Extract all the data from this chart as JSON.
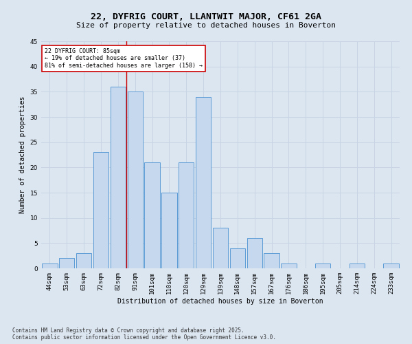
{
  "title": "22, DYFRIG COURT, LLANTWIT MAJOR, CF61 2GA",
  "subtitle": "Size of property relative to detached houses in Boverton",
  "xlabel": "Distribution of detached houses by size in Boverton",
  "ylabel": "Number of detached properties",
  "categories": [
    "44sqm",
    "53sqm",
    "63sqm",
    "72sqm",
    "82sqm",
    "91sqm",
    "101sqm",
    "110sqm",
    "120sqm",
    "129sqm",
    "139sqm",
    "148sqm",
    "157sqm",
    "167sqm",
    "176sqm",
    "186sqm",
    "195sqm",
    "205sqm",
    "214sqm",
    "224sqm",
    "233sqm"
  ],
  "values": [
    1,
    2,
    3,
    23,
    36,
    35,
    21,
    15,
    21,
    34,
    8,
    4,
    6,
    3,
    1,
    0,
    1,
    0,
    1,
    0,
    1
  ],
  "bar_color": "#c5d8ed",
  "bar_edge_color": "#5b9bd5",
  "grid_color": "#c8d4e3",
  "background_color": "#dce6f1",
  "annotation_text": "22 DYFRIG COURT: 85sqm\n← 19% of detached houses are smaller (37)\n81% of semi-detached houses are larger (158) →",
  "annotation_box_color": "#ffffff",
  "annotation_box_edge": "#cc0000",
  "vline_x": 4.5,
  "vline_color": "#cc0000",
  "ylim": [
    0,
    45
  ],
  "yticks": [
    0,
    5,
    10,
    15,
    20,
    25,
    30,
    35,
    40,
    45
  ],
  "footer": "Contains HM Land Registry data © Crown copyright and database right 2025.\nContains public sector information licensed under the Open Government Licence v3.0.",
  "title_fontsize": 9.5,
  "subtitle_fontsize": 8,
  "axis_fontsize": 7,
  "tick_fontsize": 6.5,
  "annotation_fontsize": 6,
  "footer_fontsize": 5.5
}
